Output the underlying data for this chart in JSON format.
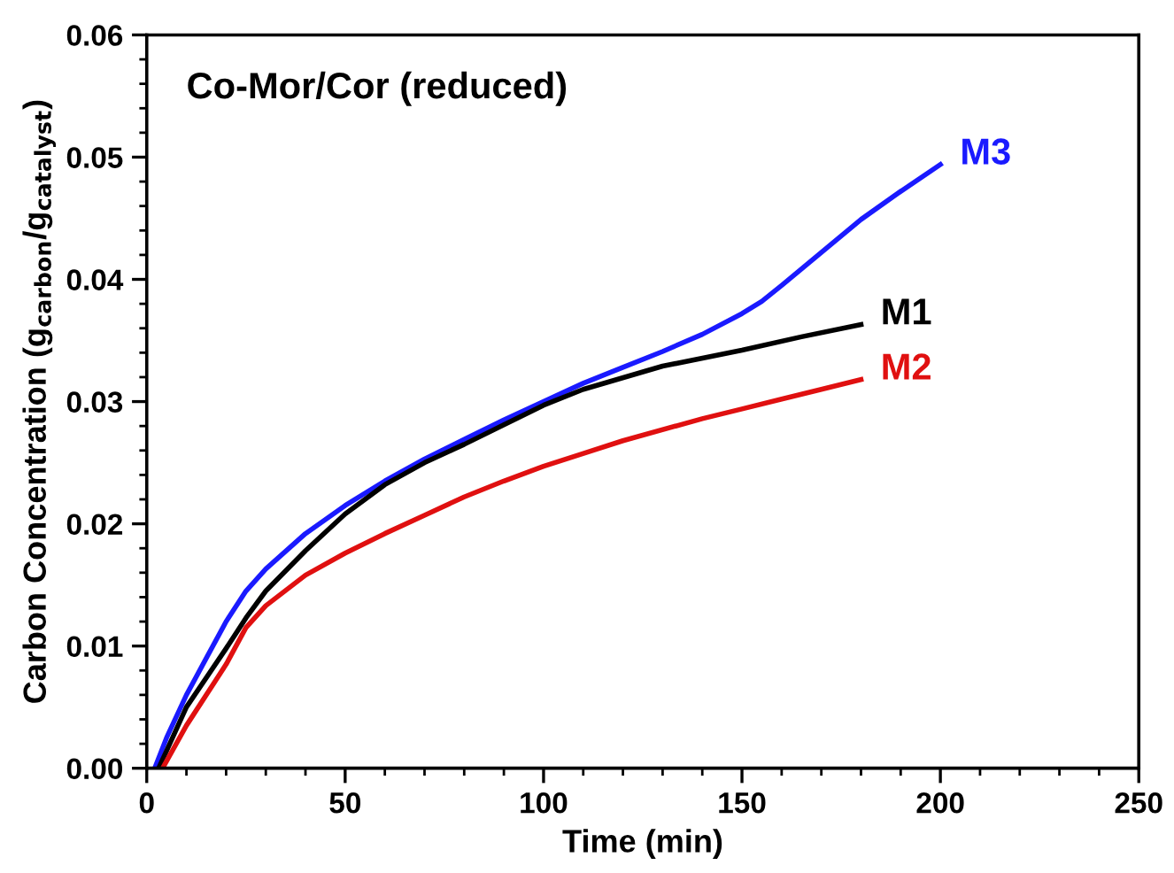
{
  "chart_data": {
    "type": "line",
    "title": "Co-Mor/Cor (reduced)",
    "xlabel": "Time (min)",
    "ylabel": "Carbon Concentration (g$_{carbon}$/g$_{catalyst}$)",
    "xlim": [
      0,
      250
    ],
    "ylim": [
      0,
      0.06
    ],
    "xticks": [
      0,
      {
        "value": 10,
        "label": null
      },
      {
        "value": 20,
        "label": null
      },
      {
        "value": 30,
        "label": null
      },
      {
        "value": 40,
        "label": null
      },
      50,
      {
        "value": 60,
        "label": null
      },
      {
        "value": 70,
        "label": null
      },
      {
        "value": 80,
        "label": null
      },
      {
        "value": 90,
        "label": null
      },
      100,
      {
        "value": 110,
        "label": null
      },
      {
        "value": 120,
        "label": null
      },
      {
        "value": 130,
        "label": null
      },
      {
        "value": 140,
        "label": null
      },
      150,
      {
        "value": 160,
        "label": null
      },
      {
        "value": 170,
        "label": null
      },
      {
        "value": 180,
        "label": null
      },
      {
        "value": 190,
        "label": null
      },
      200,
      {
        "value": 210,
        "label": null
      },
      {
        "value": 220,
        "label": null
      },
      {
        "value": 230,
        "label": null
      },
      {
        "value": 240,
        "label": null
      },
      250
    ],
    "yticks": [
      {
        "value": 0,
        "label": "0.00"
      },
      {
        "value": 0.002,
        "label": null
      },
      {
        "value": 0.004,
        "label": null
      },
      {
        "value": 0.006,
        "label": null
      },
      {
        "value": 0.008,
        "label": null
      },
      {
        "value": 0.01,
        "label": "0.01"
      },
      {
        "value": 0.012,
        "label": null
      },
      {
        "value": 0.014,
        "label": null
      },
      {
        "value": 0.016,
        "label": null
      },
      {
        "value": 0.018,
        "label": null
      },
      {
        "value": 0.02,
        "label": "0.02"
      },
      {
        "value": 0.022,
        "label": null
      },
      {
        "value": 0.024,
        "label": null
      },
      {
        "value": 0.026,
        "label": null
      },
      {
        "value": 0.028,
        "label": null
      },
      {
        "value": 0.03,
        "label": "0.03"
      },
      {
        "value": 0.032,
        "label": null
      },
      {
        "value": 0.034,
        "label": null
      },
      {
        "value": 0.036,
        "label": null
      },
      {
        "value": 0.038,
        "label": null
      },
      {
        "value": 0.04,
        "label": "0.04"
      },
      {
        "value": 0.042,
        "label": null
      },
      {
        "value": 0.044,
        "label": null
      },
      {
        "value": 0.046,
        "label": null
      },
      {
        "value": 0.048,
        "label": null
      },
      {
        "value": 0.05,
        "label": "0.05"
      },
      {
        "value": 0.052,
        "label": null
      },
      {
        "value": 0.054,
        "label": null
      },
      {
        "value": 0.056,
        "label": null
      },
      {
        "value": 0.058,
        "label": null
      },
      {
        "value": 0.06,
        "label": "0.06"
      }
    ],
    "grid": false,
    "legend": false,
    "marker": "none",
    "line_style": "solid",
    "series": [
      {
        "name": "M3",
        "color": "#1a1aff",
        "x": [
          2,
          5,
          10,
          15,
          20,
          25,
          30,
          40,
          50,
          60,
          70,
          80,
          90,
          100,
          110,
          120,
          130,
          140,
          150,
          155,
          160,
          170,
          180,
          190,
          200
        ],
        "values": [
          0,
          0.0025,
          0.006,
          0.009,
          0.012,
          0.0145,
          0.0163,
          0.0192,
          0.0215,
          0.0235,
          0.0253,
          0.0269,
          0.0285,
          0.03,
          0.0315,
          0.0328,
          0.0341,
          0.0355,
          0.0372,
          0.0382,
          0.0395,
          0.0422,
          0.0449,
          0.0472,
          0.0494
        ]
      },
      {
        "name": "M1",
        "color": "#000000",
        "x": [
          3,
          10,
          20,
          25,
          30,
          40,
          50,
          60,
          70,
          80,
          90,
          100,
          110,
          130,
          150,
          165,
          180
        ],
        "values": [
          0,
          0.005,
          0.0098,
          0.0123,
          0.0145,
          0.0178,
          0.0208,
          0.0232,
          0.025,
          0.0265,
          0.0281,
          0.0297,
          0.031,
          0.0329,
          0.0342,
          0.0353,
          0.0363
        ]
      },
      {
        "name": "M2",
        "color": "#e01010",
        "x": [
          4,
          10,
          20,
          25,
          30,
          40,
          50,
          60,
          70,
          80,
          90,
          100,
          120,
          140,
          150,
          160,
          170,
          180
        ],
        "values": [
          0,
          0.0035,
          0.0085,
          0.0115,
          0.0133,
          0.0158,
          0.0176,
          0.0192,
          0.0207,
          0.0222,
          0.0235,
          0.0247,
          0.0268,
          0.0286,
          0.0294,
          0.0302,
          0.031,
          0.0318
        ]
      }
    ]
  }
}
